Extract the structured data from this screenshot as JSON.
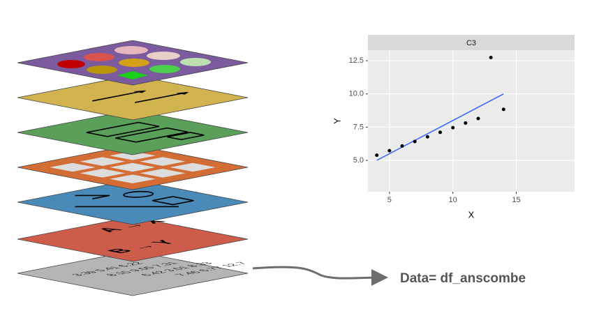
{
  "layers": {
    "aesthetics": [
      "A → X",
      "B → Y"
    ]
  },
  "chart_data": {
    "type": "scatter",
    "facet": "C3",
    "annotation": "Data= df_anscombe",
    "xlabel": "X",
    "ylabel": "Y",
    "x": [
      10,
      8,
      13,
      9,
      11,
      14,
      6,
      4,
      12,
      7,
      5
    ],
    "values": [
      7.46,
      6.77,
      12.74,
      7.11,
      7.81,
      8.84,
      6.08,
      5.39,
      8.15,
      6.42,
      5.73
    ],
    "color": "#000000",
    "fit": {
      "x": [
        4,
        14
      ],
      "values": [
        5,
        10
      ],
      "color": "#3366ff"
    },
    "xlim": [
      3.3,
      19.6
    ],
    "ylim": [
      2.64,
      13.29
    ],
    "xticks": [
      5,
      10,
      15
    ],
    "yticks": [
      {
        "value": 5,
        "label": "5.0"
      },
      {
        "value": 7.5,
        "label": "7.5"
      },
      {
        "value": 10,
        "label": "10.0"
      },
      {
        "value": 12.5,
        "label": "12.5"
      }
    ],
    "grid": true
  }
}
